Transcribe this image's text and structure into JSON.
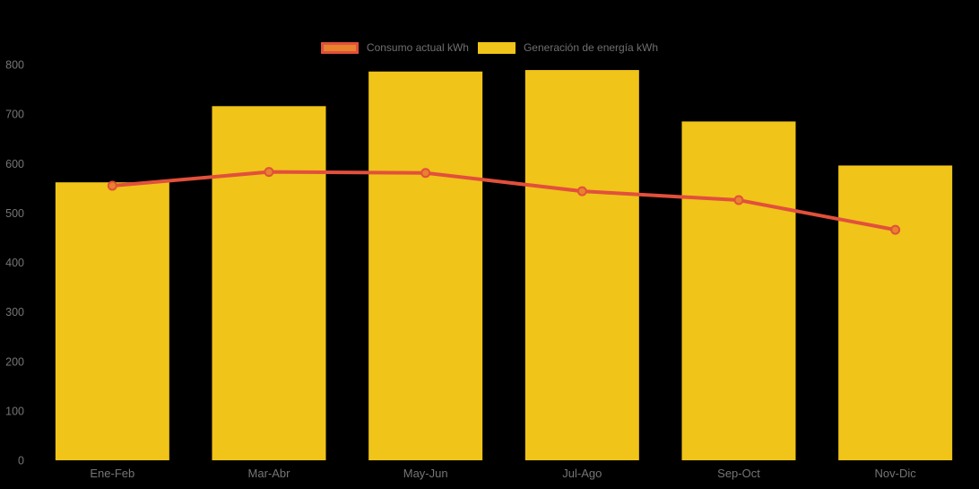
{
  "chart_data": {
    "type": "bar",
    "subtype": "bar-line-combo",
    "categories": [
      "Ene-Feb",
      "Mar-Abr",
      "May-Jun",
      "Jul-Ago",
      "Sep-Oct",
      "Nov-Dic"
    ],
    "series": [
      {
        "name": "Consumo actual kWh",
        "type": "line",
        "values": [
          555,
          583,
          581,
          544,
          526,
          466
        ],
        "line_color": "#e2503c",
        "marker_fill": "#e8822d",
        "marker_stroke": "#e2503c"
      },
      {
        "name": "Generación de energía kWh",
        "type": "bar",
        "values": [
          562,
          716,
          786,
          789,
          685,
          596
        ],
        "color": "#f0c419"
      }
    ],
    "title": "",
    "xlabel": "",
    "ylabel": "",
    "ylim": [
      0,
      800
    ],
    "y_ticks": [
      0,
      100,
      200,
      300,
      400,
      500,
      600,
      700,
      800
    ],
    "grid": false,
    "legend_position": "top",
    "background_color": "#000000",
    "axis_tick_color": "#757575"
  }
}
